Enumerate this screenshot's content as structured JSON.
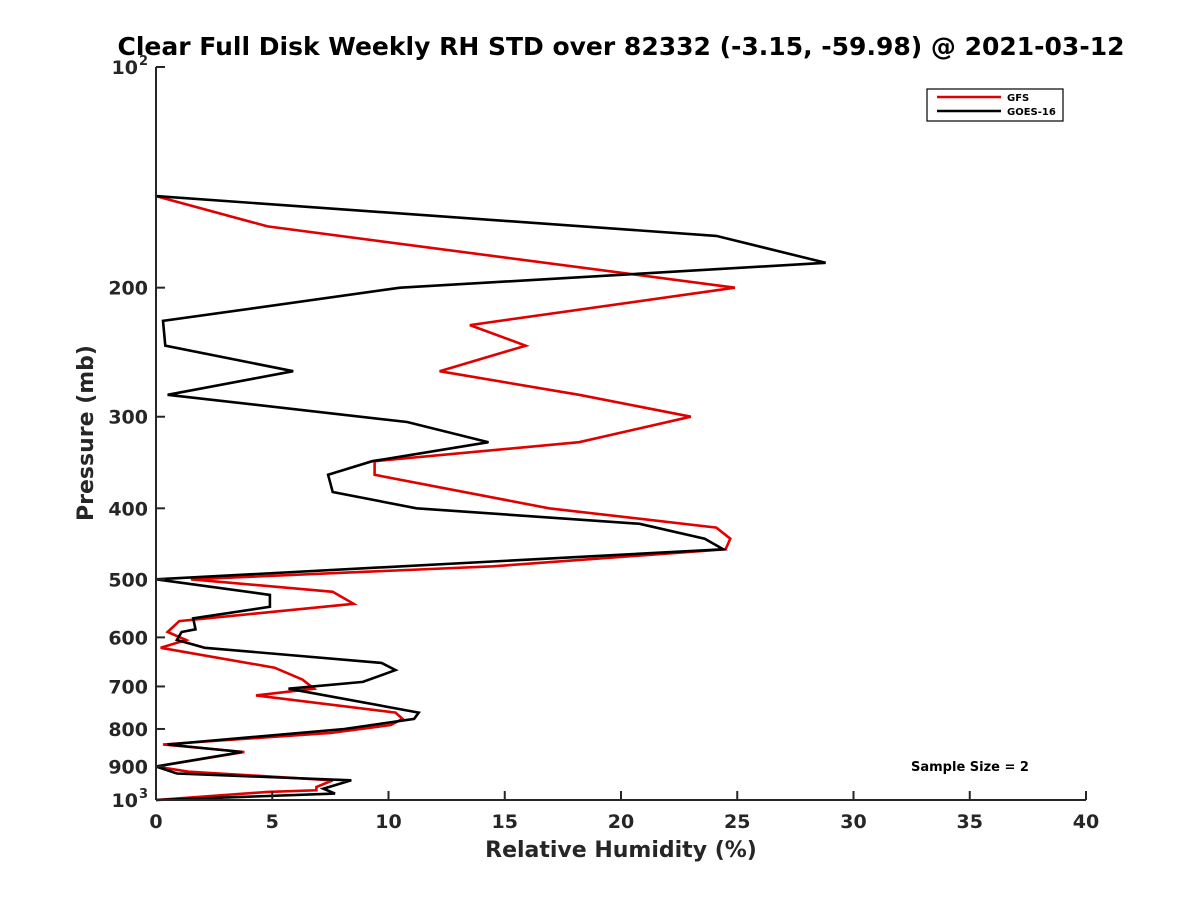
{
  "chart_data": {
    "type": "line",
    "title": "Clear Full Disk Weekly RH STD over 82332 (-3.15, -59.98) @ 2021-03-12",
    "xlabel": "Relative Humidity (%)",
    "ylabel": "Pressure (mb)",
    "xlim": [
      0,
      40
    ],
    "ylim": [
      100,
      1000
    ],
    "yscale": "log",
    "y_reversed": true,
    "grid": false,
    "legend_position": "top-right",
    "x_ticks": [
      "0",
      "5",
      "10",
      "15",
      "20",
      "25",
      "30",
      "35",
      "40"
    ],
    "y_ticks": [
      {
        "value": 100,
        "base": "10",
        "exp": "2"
      },
      {
        "value": 200,
        "label": "200"
      },
      {
        "value": 300,
        "label": "300"
      },
      {
        "value": 400,
        "label": "400"
      },
      {
        "value": 500,
        "label": "500"
      },
      {
        "value": 600,
        "label": "600"
      },
      {
        "value": 700,
        "label": "700"
      },
      {
        "value": 800,
        "label": "800"
      },
      {
        "value": 900,
        "label": "900"
      },
      {
        "value": 1000,
        "base": "10",
        "exp": "3"
      }
    ],
    "annotation": "Sample Size = 2",
    "series": [
      {
        "name": "GFS",
        "color": "#e00000",
        "points": [
          [
            0.0,
            150
          ],
          [
            4.8,
            165
          ],
          [
            24.9,
            200
          ],
          [
            13.5,
            225
          ],
          [
            15.9,
            240
          ],
          [
            12.2,
            260
          ],
          [
            18.2,
            280
          ],
          [
            23.0,
            300
          ],
          [
            18.2,
            325
          ],
          [
            9.4,
            345
          ],
          [
            9.4,
            360
          ],
          [
            16.9,
            400
          ],
          [
            24.1,
            425
          ],
          [
            24.7,
            440
          ],
          [
            24.5,
            455
          ],
          [
            14.5,
            480
          ],
          [
            1.5,
            500
          ],
          [
            7.6,
            520
          ],
          [
            8.5,
            540
          ],
          [
            1.0,
            570
          ],
          [
            0.5,
            590
          ],
          [
            1.3,
            605
          ],
          [
            0.2,
            620
          ],
          [
            5.1,
            660
          ],
          [
            6.3,
            685
          ],
          [
            6.8,
            705
          ],
          [
            4.3,
            720
          ],
          [
            10.3,
            760
          ],
          [
            10.6,
            775
          ],
          [
            10.1,
            790
          ],
          [
            7.5,
            810
          ],
          [
            0.3,
            840
          ],
          [
            3.8,
            860
          ],
          [
            0.0,
            900
          ],
          [
            1.4,
            915
          ],
          [
            7.6,
            940
          ],
          [
            6.9,
            960
          ],
          [
            6.9,
            970
          ],
          [
            4.8,
            975
          ],
          [
            0.0,
            1000
          ]
        ]
      },
      {
        "name": "GOES-16",
        "color": "#000000",
        "points": [
          [
            0.0,
            150
          ],
          [
            24.1,
            170
          ],
          [
            28.8,
            185
          ],
          [
            10.5,
            200
          ],
          [
            0.3,
            222
          ],
          [
            0.4,
            240
          ],
          [
            5.9,
            260
          ],
          [
            0.5,
            280
          ],
          [
            10.8,
            305
          ],
          [
            14.3,
            325
          ],
          [
            9.3,
            345
          ],
          [
            7.4,
            360
          ],
          [
            7.6,
            380
          ],
          [
            11.2,
            400
          ],
          [
            20.8,
            420
          ],
          [
            23.6,
            440
          ],
          [
            24.4,
            455
          ],
          [
            0.0,
            500
          ],
          [
            4.9,
            525
          ],
          [
            4.9,
            545
          ],
          [
            1.6,
            565
          ],
          [
            1.7,
            585
          ],
          [
            1.1,
            590
          ],
          [
            0.9,
            605
          ],
          [
            2.1,
            620
          ],
          [
            9.7,
            650
          ],
          [
            10.3,
            665
          ],
          [
            8.9,
            690
          ],
          [
            5.7,
            705
          ],
          [
            11.3,
            760
          ],
          [
            11.1,
            775
          ],
          [
            8.1,
            800
          ],
          [
            0.5,
            840
          ],
          [
            3.7,
            860
          ],
          [
            0.0,
            900
          ],
          [
            0.9,
            920
          ],
          [
            8.4,
            940
          ],
          [
            7.2,
            965
          ],
          [
            7.7,
            980
          ],
          [
            0.0,
            1000
          ]
        ]
      }
    ]
  }
}
